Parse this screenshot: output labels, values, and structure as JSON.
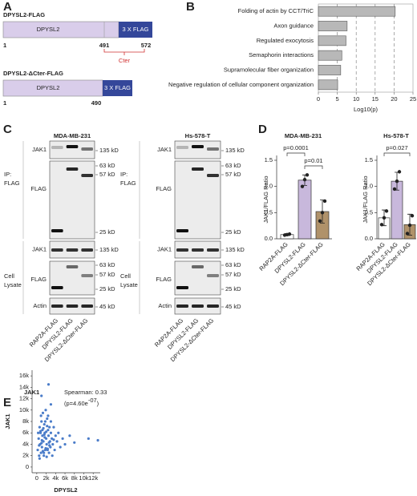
{
  "panel_labels": [
    "A",
    "B",
    "C",
    "D",
    "E"
  ],
  "constructs": [
    {
      "name": "DPYSL2-FLAG",
      "domain": "DPYSL2",
      "tag": "3 X FLAG",
      "positions": [
        1,
        491,
        572
      ],
      "region": "Cter"
    },
    {
      "name": "DPYSL2-ΔCter-FLAG",
      "domain": "DPYSL2",
      "tag": "3 X FLAG",
      "positions": [
        1,
        490
      ]
    }
  ],
  "blots": [
    {
      "cell_line": "MDA-MB-231",
      "rows": [
        "JAK1",
        "FLAG",
        "JAK1",
        "FLAG",
        "Actin"
      ],
      "markers": [
        [
          "135 kD"
        ],
        [
          "63 kD",
          "57 kD",
          "25 kD"
        ],
        [
          "135 kD"
        ],
        [
          "63 kD",
          "57 kD",
          "25 kD"
        ],
        [
          "45 kD"
        ]
      ],
      "ip_label": [
        "IP:",
        "FLAG"
      ],
      "lysate_label": [
        "Cell",
        "Lysate"
      ],
      "lanes": [
        "RAP2A-FLAG",
        "DPYSL2-FLAG",
        "DPYSL2-ΔCter-FLAG"
      ]
    },
    {
      "cell_line": "Hs-578-T",
      "rows": [
        "JAK1",
        "FLAG",
        "JAK1",
        "FLAG",
        "Actin"
      ],
      "markers": [
        [
          "135 kD"
        ],
        [
          "63 kD",
          "57 kD",
          "25 kD"
        ],
        [
          "135 kD"
        ],
        [
          "63 kD",
          "57 kD",
          "25 kD"
        ],
        [
          "45 kD"
        ]
      ],
      "ip_label": [
        "IP:",
        "FLAG"
      ],
      "lysate_label": [
        "Cell",
        "Lysate"
      ],
      "lanes": [
        "RAP2A-FLAG",
        "DPYSL2-FLAG",
        "DPYSL2-ΔCter-FLAG"
      ]
    }
  ],
  "chart_data": [
    {
      "type": "bar",
      "orientation": "horizontal",
      "categories": [
        "Folding of actin by CCT/TriC",
        "Axon guidance",
        "Regulated exocytosis",
        "Semaphorin interactions",
        "Supramolecular fiber organization",
        "Negative regulation of cellular component organization"
      ],
      "values": [
        20.3,
        7.6,
        7.3,
        6.2,
        5.9,
        5.1
      ],
      "color": "#b8b8b8",
      "xlim": [
        0,
        25
      ],
      "xticks": [
        0,
        5,
        10,
        15,
        20,
        25
      ],
      "xlabel": "Log10(p)",
      "grid": true
    },
    {
      "type": "bar",
      "title": "MDA-MB-231",
      "ylabel": "JAK1/FLAG Ratio",
      "categories": [
        "RAP2A-FLAG",
        "DPYSL2-FLAG",
        "DPYSL2-ΔCter-FLAG"
      ],
      "values": [
        0.08,
        1.12,
        0.52
      ],
      "errors": [
        0.02,
        0.1,
        0.22
      ],
      "points": [
        [
          0.07,
          0.08,
          0.09
        ],
        [
          1.0,
          1.13,
          1.22
        ],
        [
          0.34,
          0.5,
          0.72
        ]
      ],
      "colors": [
        "#ffffff",
        "#c8b8dc",
        "#b0926a"
      ],
      "ylim": [
        0,
        1.5
      ],
      "yticks": [
        {
          "value": 0,
          "label": "0.0"
        },
        0.5,
        {
          "value": 1,
          "label": "1.0"
        },
        1.5
      ],
      "annotations": [
        "p=0.0001",
        "p=0.01"
      ]
    },
    {
      "type": "bar",
      "title": "Hs-578-T",
      "ylabel": "JAK1/FLAG Ratio",
      "categories": [
        "RAP2A-FLAG",
        "DPYSL2-FLAG",
        "DPYSL2-ΔCter-FLAG"
      ],
      "values": [
        0.4,
        1.1,
        0.27
      ],
      "errors": [
        0.15,
        0.17,
        0.2
      ],
      "points": [
        [
          0.27,
          0.4,
          0.53
        ],
        [
          0.95,
          1.1,
          1.28
        ],
        [
          0.1,
          0.26,
          0.44
        ]
      ],
      "colors": [
        "#ffffff",
        "#c8b8dc",
        "#b0926a"
      ],
      "ylim": [
        0,
        1.5
      ],
      "yticks": [
        {
          "value": 0,
          "label": "0.0"
        },
        0.5,
        {
          "value": 1,
          "label": "1.0"
        },
        1.5
      ],
      "annotations": [
        "p=0.027"
      ]
    },
    {
      "type": "scatter",
      "title": "JAK1",
      "xlabel": "DPYSL2",
      "ylabel": "JAK1",
      "color": "#4a7cc9",
      "annotation": "Spearman: 0.33",
      "p_prefix": "(p=4.60e",
      "p_exponent": "-07",
      "p_suffix": ")",
      "x": [
        200,
        400,
        500,
        600,
        700,
        800,
        900,
        1000,
        1100,
        1200,
        1300,
        1400,
        1500,
        1600,
        1700,
        1800,
        1900,
        2000,
        2100,
        2200,
        2300,
        2400,
        2500,
        2600,
        2700,
        2800,
        2900,
        3000,
        3200,
        3400,
        3600,
        3800,
        4000,
        4300,
        4600,
        5000,
        5500,
        6000,
        7000,
        8000,
        11000,
        13000,
        2500,
        3000,
        1000,
        300,
        600,
        900,
        1200,
        1500,
        1800,
        2100,
        2400,
        2700,
        3000,
        3300,
        3600,
        1000,
        1400,
        1700,
        2000,
        2300,
        2600,
        500,
        800,
        1100,
        1300,
        1600,
        1900,
        2200
      ],
      "values": [
        3000,
        5000,
        2000,
        7000,
        4000,
        6000,
        2500,
        8000,
        3500,
        5500,
        9500,
        4500,
        2000,
        7500,
        6000,
        3000,
        10000,
        5000,
        4000,
        8500,
        3000,
        6500,
        5500,
        2500,
        7000,
        4500,
        3500,
        6000,
        5000,
        4000,
        7000,
        3000,
        5500,
        4500,
        6000,
        3500,
        5000,
        4000,
        5500,
        4300,
        5000,
        4700,
        14500,
        11000,
        12500,
        6000,
        1500,
        9000,
        6500,
        2500,
        8000,
        1800,
        9000,
        3800,
        8000,
        2000,
        4800,
        4200,
        6800,
        5200,
        6200,
        3200,
        4300,
        3800,
        6300,
        4700,
        2800,
        5700,
        3300,
        7200
      ],
      "xlim": [
        -1000,
        13500
      ],
      "xticks": [
        0,
        {
          "value": 2000,
          "label": "2k"
        },
        {
          "value": 4000,
          "label": "4k"
        },
        {
          "value": 6000,
          "label": "6k"
        },
        {
          "value": 8000,
          "label": "8k"
        },
        {
          "value": 10000,
          "label": "10k"
        },
        {
          "value": 12000,
          "label": "12k"
        }
      ],
      "ylim": [
        -1000,
        17000
      ],
      "yticks": [
        0,
        {
          "value": 2000,
          "label": "2k"
        },
        {
          "value": 4000,
          "label": "4k"
        },
        {
          "value": 6000,
          "label": "6k"
        },
        {
          "value": 8000,
          "label": "8k"
        },
        {
          "value": 10000,
          "label": "10k"
        },
        {
          "value": 12000,
          "label": "12k"
        },
        {
          "value": 14000,
          "label": "14k"
        },
        {
          "value": 16000,
          "label": "16k"
        }
      ]
    }
  ]
}
